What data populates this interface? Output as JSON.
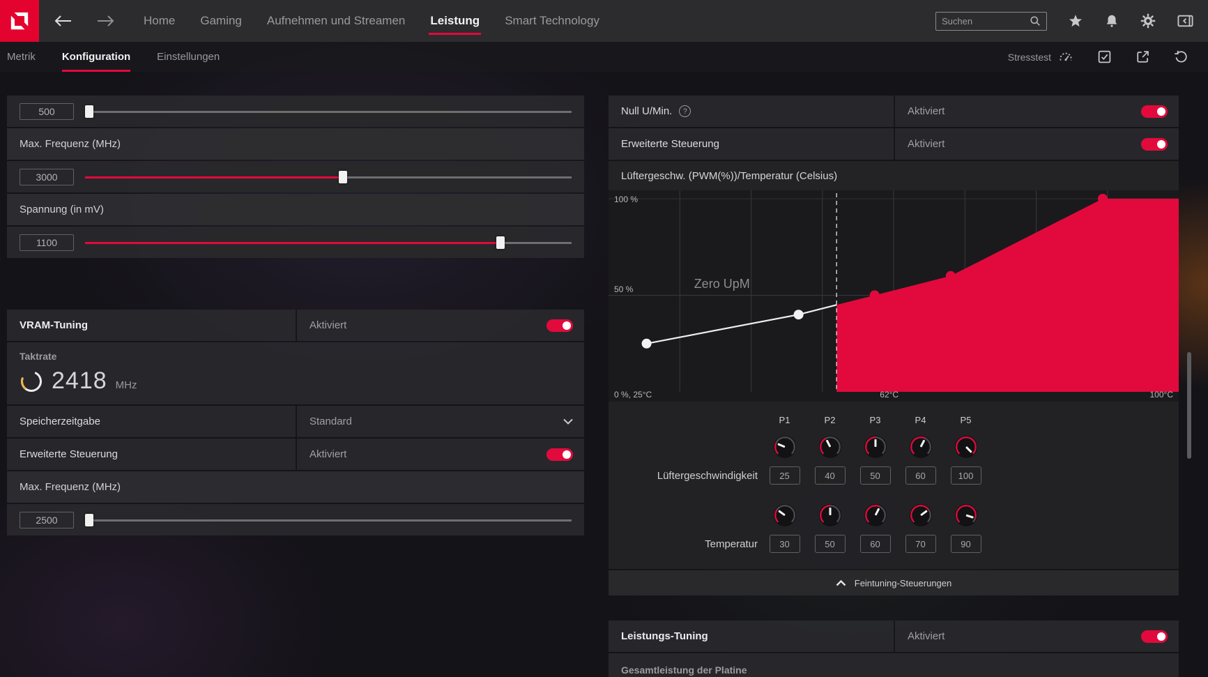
{
  "colors": {
    "accent": "#e20a3c",
    "logo_red": "#e4032e",
    "chart_background": "#1a1a1d",
    "white_line": "#efefef"
  },
  "topnav": {
    "items": [
      {
        "label": "Home"
      },
      {
        "label": "Gaming"
      },
      {
        "label": "Aufnehmen und Streamen"
      },
      {
        "label": "Leistung"
      },
      {
        "label": "Smart Technology"
      }
    ],
    "active": "Leistung",
    "search_placeholder": "Suchen"
  },
  "subnav": {
    "items": [
      {
        "label": "Metrik"
      },
      {
        "label": "Konfiguration"
      },
      {
        "label": "Einstellungen"
      }
    ],
    "active": "Konfiguration",
    "stresstest_label": "Stresstest"
  },
  "left": {
    "min_freq": {
      "value": "500",
      "percent": 0
    },
    "max_freq_label": "Max. Frequenz (MHz)",
    "max_freq": {
      "value": "3000",
      "percent": 53
    },
    "voltage_label": "Spannung (in mV)",
    "voltage": {
      "value": "1100",
      "percent": 86
    },
    "vram": {
      "title": "VRAM-Tuning",
      "status": "Aktiviert",
      "clock_label": "Taktrate",
      "clock_value": "2418",
      "clock_unit": "MHz",
      "timing_label": "Speicherzeitgabe",
      "timing_value": "Standard",
      "advanced_label": "Erweiterte Steuerung",
      "advanced_status": "Aktiviert",
      "max_freq_label": "Max. Frequenz (MHz)",
      "max_freq": {
        "value": "2500",
        "percent": 0
      }
    }
  },
  "right": {
    "zero_rpm_label": "Null U/Min.",
    "zero_rpm_status": "Aktiviert",
    "advanced_label": "Erweiterte Steuerung",
    "advanced_status": "Aktiviert",
    "fan_table": {
      "point_labels": [
        "P1",
        "P2",
        "P3",
        "P4",
        "P5"
      ],
      "speed_label": "Lüftergeschwindigkeit",
      "speeds": [
        25,
        40,
        50,
        60,
        100
      ],
      "temp_label": "Temperatur",
      "temps": [
        30,
        50,
        60,
        70,
        90
      ]
    },
    "fine_tuning_label": "Feintuning-Steuerungen",
    "power": {
      "title": "Leistungs-Tuning",
      "status": "Aktiviert",
      "board_label": "Gesamtleistung der Platine"
    }
  },
  "chart_data": {
    "type": "area",
    "title": "Lüftergeschw. (PWM(%))/Temperatur (Celsius)",
    "x_label": "Temperatur (Celsius)",
    "y_label": "Lüftergeschw. (PWM %)",
    "x": [
      30,
      50,
      60,
      70,
      90
    ],
    "y": [
      25,
      40,
      50,
      60,
      100
    ],
    "xlim": [
      25,
      100
    ],
    "ylim": [
      0,
      100
    ],
    "extend_to": 100,
    "zero_rpm_threshold_temp": 55,
    "current_temp": 62,
    "labels": {
      "top_left": "100 %",
      "mid_left": "50 %",
      "bottom_left": "0 %, 25°C",
      "current_temp": "62°C",
      "bottom_right": "100°C"
    },
    "annotation": "Zero UpM",
    "grid": true,
    "legend": false
  }
}
